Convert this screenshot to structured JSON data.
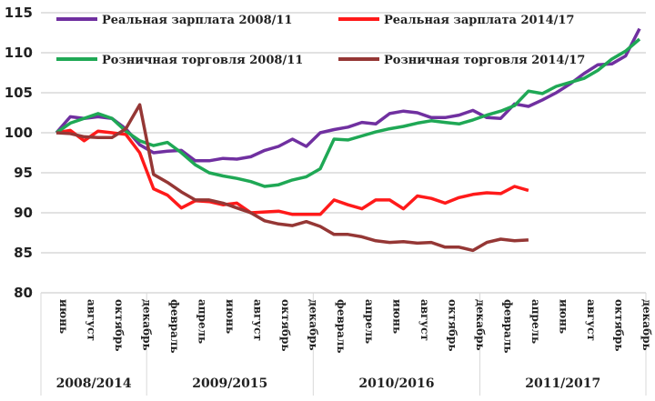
{
  "chart_data": {
    "type": "line",
    "title": "",
    "xlabel": "",
    "ylabel": "",
    "ylim": [
      80,
      115
    ],
    "yticks": [
      80,
      85,
      90,
      95,
      100,
      105,
      110,
      115
    ],
    "grid": true,
    "legend_position": "top",
    "month_labels": [
      "июнь",
      "август",
      "октябрь",
      "декабрь",
      "февраль",
      "апрель",
      "июнь",
      "август",
      "октябрь",
      "декабрь",
      "февраль",
      "апрель",
      "июнь",
      "август",
      "октябрь",
      "декабрь",
      "февраль",
      "апрель",
      "июнь",
      "август",
      "октябрь",
      "декабрь"
    ],
    "year_labels": [
      "2008/2014",
      "2009/2015",
      "2010/2016",
      "2011/2017"
    ],
    "series": [
      {
        "name": "Реальная зарплата 2008/11",
        "color": "#7030a0",
        "values": [
          100,
          102,
          101.8,
          102,
          101.8,
          100.5,
          98.5,
          97.5,
          97.7,
          97.8,
          96.5,
          96.5,
          96.8,
          96.7,
          97,
          97.8,
          98.3,
          99.2,
          98.3,
          100,
          100.4,
          100.7,
          101.3,
          101.1,
          102.4,
          102.7,
          102.5,
          101.9,
          101.9,
          102.2,
          102.8,
          101.9,
          101.8,
          103.6,
          103.3,
          104.1,
          105,
          106.1,
          107.4,
          108.5,
          108.6,
          109.6,
          113
        ]
      },
      {
        "name": "Реальная зарплата 2014/17",
        "color": "#ff1a1a",
        "values": [
          100,
          100.3,
          99,
          100.2,
          100,
          99.8,
          97.5,
          93,
          92.2,
          90.6,
          91.5,
          91.4,
          91,
          91.2,
          90,
          90.1,
          90.2,
          89.8,
          89.8,
          89.8,
          91.6,
          91,
          90.5,
          91.6,
          91.6,
          90.5,
          92.1,
          91.8,
          91.2,
          91.9,
          92.3,
          92.5,
          92.4,
          93.3,
          92.8
        ]
      },
      {
        "name": "Розничная торговля 2008/11",
        "color": "#1fa855",
        "values": [
          100,
          101.2,
          101.8,
          102.4,
          101.8,
          100.2,
          99,
          98.4,
          98.8,
          97.5,
          96,
          95,
          94.6,
          94.3,
          93.9,
          93.3,
          93.5,
          94.1,
          94.5,
          95.5,
          99.2,
          99.1,
          99.6,
          100.1,
          100.5,
          100.8,
          101.2,
          101.5,
          101.3,
          101.1,
          101.6,
          102.2,
          102.7,
          103.4,
          105.2,
          104.9,
          105.8,
          106.3,
          106.8,
          107.8,
          109.2,
          110.2,
          111.7
        ]
      },
      {
        "name": "Розничная торговля 2014/17",
        "color": "#953735",
        "values": [
          100,
          99.9,
          99.5,
          99.4,
          99.4,
          100.5,
          103.5,
          94.8,
          93.8,
          92.6,
          91.6,
          91.6,
          91.2,
          90.6,
          90,
          89,
          88.6,
          88.4,
          88.9,
          88.3,
          87.3,
          87.3,
          87,
          86.5,
          86.3,
          86.4,
          86.2,
          86.3,
          85.7,
          85.7,
          85.3,
          86.3,
          86.7,
          86.5,
          86.6
        ]
      }
    ]
  }
}
